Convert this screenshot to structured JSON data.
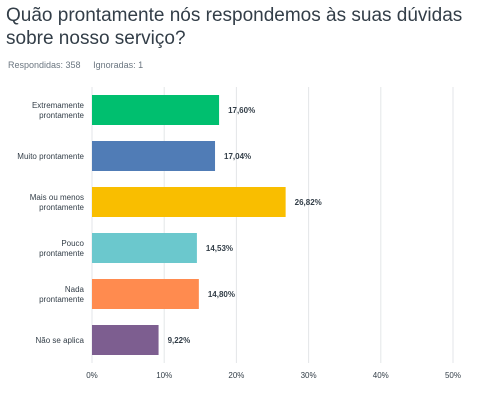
{
  "survey": {
    "question": "Quão prontamente nós respondemos às suas dúvidas sobre nosso serviço?",
    "answered_label": "Respondidas: 358",
    "skipped_label": "Ignoradas: 1"
  },
  "colors": {
    "background": "#ffffff",
    "grid": "#e3e6e8",
    "text": "#333e48"
  },
  "chart_data": {
    "type": "bar",
    "orientation": "horizontal",
    "categories": [
      [
        "Extremamente",
        "prontamente"
      ],
      [
        "Muito prontamente"
      ],
      [
        "Mais ou menos",
        "prontamente"
      ],
      [
        "Pouco",
        "prontamente"
      ],
      [
        "Nada",
        "prontamente"
      ],
      [
        "Não se aplica"
      ]
    ],
    "values": [
      17.6,
      17.04,
      26.82,
      14.53,
      14.8,
      9.22
    ],
    "value_labels": [
      "17,60%",
      "17,04%",
      "26,82%",
      "14,53%",
      "14,80%",
      "9,22%"
    ],
    "colors": [
      "#00bf6f",
      "#507cb6",
      "#f9be00",
      "#6bc8cd",
      "#ff8b4f",
      "#7d5e90"
    ],
    "x_ticks": [
      0,
      10,
      20,
      30,
      40,
      50
    ],
    "x_tick_labels": [
      "0%",
      "10%",
      "20%",
      "30%",
      "40%",
      "50%"
    ],
    "xlim": [
      0,
      50
    ],
    "grid": true
  }
}
